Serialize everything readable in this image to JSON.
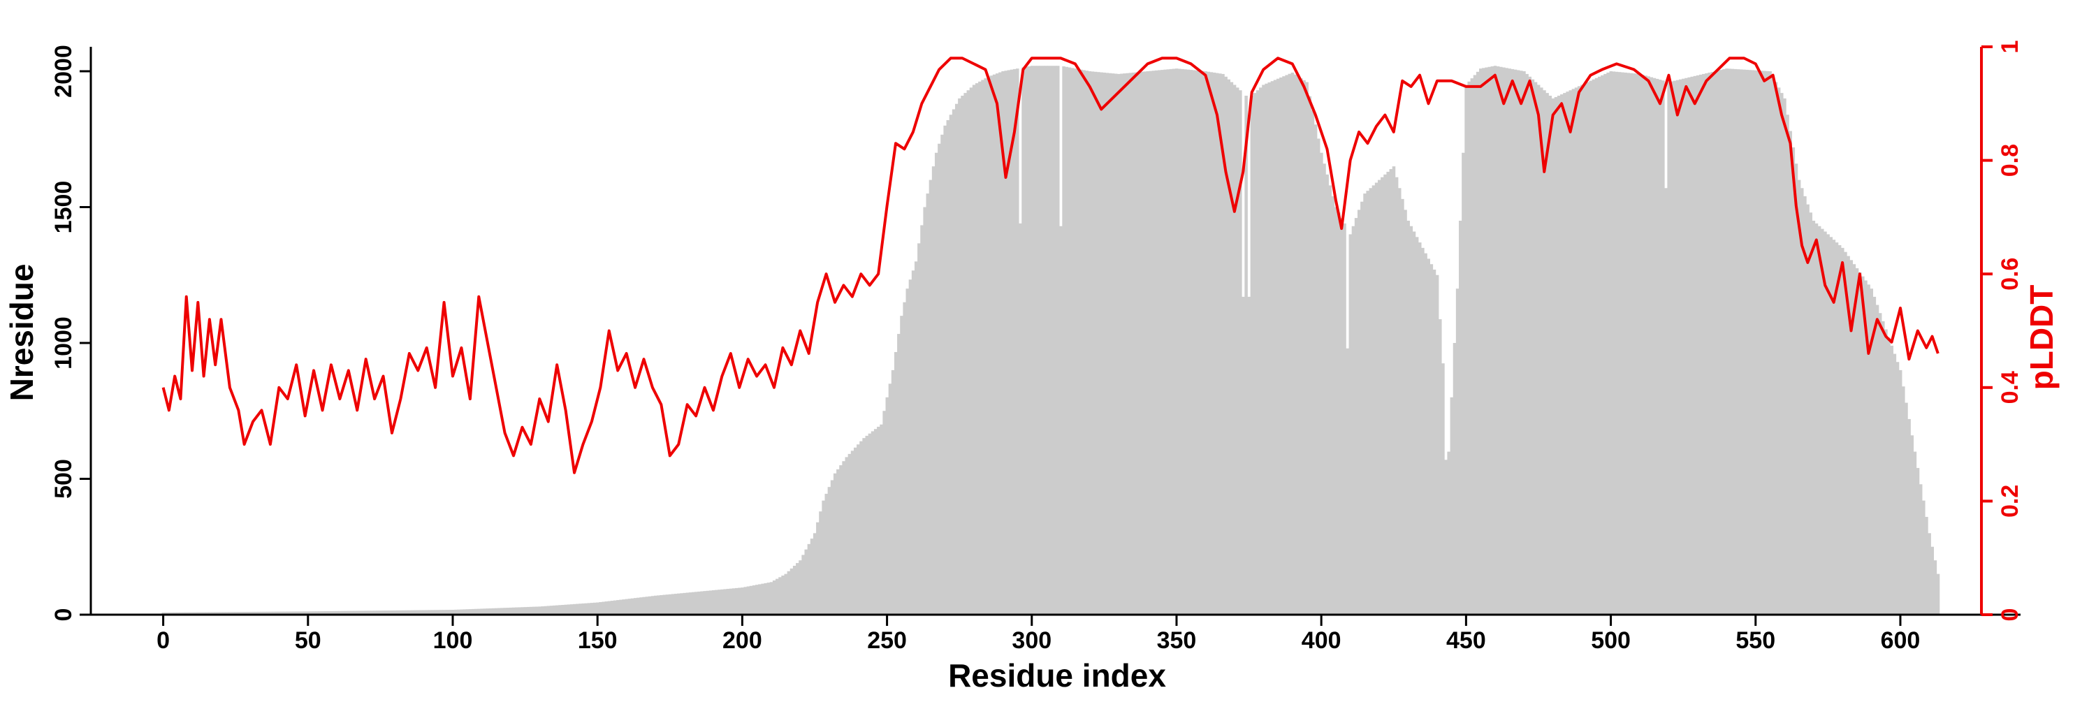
{
  "chart_data": {
    "type": "bar+line",
    "xlabel": "Residue index",
    "ylabel_left": "Nresidue",
    "ylabel_right": "pLDDT",
    "x_ticks": [
      0,
      50,
      100,
      150,
      200,
      250,
      300,
      350,
      400,
      450,
      500,
      550,
      600
    ],
    "x_tick_labels": [
      "0",
      "50",
      "100",
      "150",
      "200",
      "250",
      "300",
      "350",
      "400",
      "450",
      "500",
      "550",
      "600"
    ],
    "y_left_ticks": [
      0,
      500,
      1000,
      1500,
      2000
    ],
    "y_left_tick_labels": [
      "0",
      "500",
      "1000",
      "1500",
      "2000"
    ],
    "y_right_ticks": [
      0,
      0.2,
      0.4,
      0.6,
      0.8,
      1
    ],
    "y_right_tick_labels": [
      "0",
      "0.2",
      "0.4",
      "0.6",
      "0.8",
      "1"
    ],
    "xlim": [
      -25,
      628
    ],
    "ylim_left": [
      0,
      2090
    ],
    "ylim_right": [
      0,
      1
    ],
    "colors": {
      "bars": "#cccccc",
      "line": "#ee0000",
      "axis": "#000000",
      "right_axis": "#ee0000"
    },
    "nresidue_keypoints": [
      [
        0,
        8
      ],
      [
        50,
        12
      ],
      [
        100,
        18
      ],
      [
        130,
        30
      ],
      [
        150,
        45
      ],
      [
        170,
        70
      ],
      [
        190,
        90
      ],
      [
        200,
        100
      ],
      [
        210,
        120
      ],
      [
        215,
        150
      ],
      [
        220,
        200
      ],
      [
        225,
        300
      ],
      [
        228,
        420
      ],
      [
        232,
        520
      ],
      [
        236,
        580
      ],
      [
        242,
        650
      ],
      [
        248,
        700
      ],
      [
        252,
        900
      ],
      [
        255,
        1100
      ],
      [
        257,
        1200
      ],
      [
        260,
        1300
      ],
      [
        263,
        1500
      ],
      [
        267,
        1700
      ],
      [
        270,
        1800
      ],
      [
        275,
        1900
      ],
      [
        280,
        1950
      ],
      [
        285,
        1980
      ],
      [
        290,
        2000
      ],
      [
        300,
        2020
      ],
      [
        310,
        2020
      ],
      [
        320,
        2000
      ],
      [
        330,
        1990
      ],
      [
        350,
        2010
      ],
      [
        360,
        2000
      ],
      [
        366,
        1990
      ],
      [
        370,
        1950
      ],
      [
        375,
        1900
      ],
      [
        380,
        1950
      ],
      [
        390,
        1995
      ],
      [
        395,
        1960
      ],
      [
        400,
        1700
      ],
      [
        405,
        1500
      ],
      [
        410,
        1400
      ],
      [
        415,
        1550
      ],
      [
        420,
        1600
      ],
      [
        425,
        1650
      ],
      [
        430,
        1450
      ],
      [
        435,
        1350
      ],
      [
        440,
        1250
      ],
      [
        444,
        600
      ],
      [
        447,
        1200
      ],
      [
        450,
        1950
      ],
      [
        455,
        2010
      ],
      [
        460,
        2020
      ],
      [
        470,
        2000
      ],
      [
        480,
        1900
      ],
      [
        490,
        1950
      ],
      [
        500,
        2000
      ],
      [
        510,
        1990
      ],
      [
        520,
        1960
      ],
      [
        540,
        2010
      ],
      [
        555,
        2000
      ],
      [
        560,
        1900
      ],
      [
        565,
        1600
      ],
      [
        570,
        1450
      ],
      [
        575,
        1400
      ],
      [
        580,
        1350
      ],
      [
        590,
        1200
      ],
      [
        595,
        1050
      ],
      [
        600,
        900
      ],
      [
        605,
        600
      ],
      [
        610,
        300
      ],
      [
        613,
        150
      ]
    ],
    "nresidue_dips": [
      [
        296,
        1440
      ],
      [
        310,
        1430
      ],
      [
        373,
        1170
      ],
      [
        375,
        1170
      ],
      [
        409,
        980
      ],
      [
        443,
        570
      ],
      [
        519,
        1570
      ]
    ],
    "plddt_keypoints": [
      [
        0,
        0.4
      ],
      [
        2,
        0.36
      ],
      [
        4,
        0.42
      ],
      [
        6,
        0.38
      ],
      [
        8,
        0.56
      ],
      [
        10,
        0.43
      ],
      [
        12,
        0.55
      ],
      [
        14,
        0.42
      ],
      [
        16,
        0.52
      ],
      [
        18,
        0.44
      ],
      [
        20,
        0.52
      ],
      [
        23,
        0.4
      ],
      [
        26,
        0.36
      ],
      [
        28,
        0.3
      ],
      [
        31,
        0.34
      ],
      [
        34,
        0.36
      ],
      [
        37,
        0.3
      ],
      [
        40,
        0.4
      ],
      [
        43,
        0.38
      ],
      [
        46,
        0.44
      ],
      [
        49,
        0.35
      ],
      [
        52,
        0.43
      ],
      [
        55,
        0.36
      ],
      [
        58,
        0.44
      ],
      [
        61,
        0.38
      ],
      [
        64,
        0.43
      ],
      [
        67,
        0.36
      ],
      [
        70,
        0.45
      ],
      [
        73,
        0.38
      ],
      [
        76,
        0.42
      ],
      [
        79,
        0.32
      ],
      [
        82,
        0.38
      ],
      [
        85,
        0.46
      ],
      [
        88,
        0.43
      ],
      [
        91,
        0.47
      ],
      [
        94,
        0.4
      ],
      [
        97,
        0.55
      ],
      [
        100,
        0.42
      ],
      [
        103,
        0.47
      ],
      [
        106,
        0.38
      ],
      [
        109,
        0.56
      ],
      [
        112,
        0.48
      ],
      [
        115,
        0.4
      ],
      [
        118,
        0.32
      ],
      [
        121,
        0.28
      ],
      [
        124,
        0.33
      ],
      [
        127,
        0.3
      ],
      [
        130,
        0.38
      ],
      [
        133,
        0.34
      ],
      [
        136,
        0.44
      ],
      [
        139,
        0.36
      ],
      [
        142,
        0.25
      ],
      [
        145,
        0.3
      ],
      [
        148,
        0.34
      ],
      [
        151,
        0.4
      ],
      [
        154,
        0.5
      ],
      [
        157,
        0.43
      ],
      [
        160,
        0.46
      ],
      [
        163,
        0.4
      ],
      [
        166,
        0.45
      ],
      [
        169,
        0.4
      ],
      [
        172,
        0.37
      ],
      [
        175,
        0.28
      ],
      [
        178,
        0.3
      ],
      [
        181,
        0.37
      ],
      [
        184,
        0.35
      ],
      [
        187,
        0.4
      ],
      [
        190,
        0.36
      ],
      [
        193,
        0.42
      ],
      [
        196,
        0.46
      ],
      [
        199,
        0.4
      ],
      [
        202,
        0.45
      ],
      [
        205,
        0.42
      ],
      [
        208,
        0.44
      ],
      [
        211,
        0.4
      ],
      [
        214,
        0.47
      ],
      [
        217,
        0.44
      ],
      [
        220,
        0.5
      ],
      [
        223,
        0.46
      ],
      [
        226,
        0.55
      ],
      [
        229,
        0.6
      ],
      [
        232,
        0.55
      ],
      [
        235,
        0.58
      ],
      [
        238,
        0.56
      ],
      [
        241,
        0.6
      ],
      [
        244,
        0.58
      ],
      [
        247,
        0.6
      ],
      [
        250,
        0.72
      ],
      [
        253,
        0.83
      ],
      [
        256,
        0.82
      ],
      [
        259,
        0.85
      ],
      [
        262,
        0.9
      ],
      [
        265,
        0.93
      ],
      [
        268,
        0.96
      ],
      [
        272,
        0.98
      ],
      [
        276,
        0.98
      ],
      [
        280,
        0.97
      ],
      [
        284,
        0.96
      ],
      [
        288,
        0.9
      ],
      [
        291,
        0.77
      ],
      [
        294,
        0.85
      ],
      [
        297,
        0.96
      ],
      [
        300,
        0.98
      ],
      [
        305,
        0.98
      ],
      [
        310,
        0.98
      ],
      [
        315,
        0.97
      ],
      [
        320,
        0.93
      ],
      [
        324,
        0.89
      ],
      [
        328,
        0.91
      ],
      [
        332,
        0.93
      ],
      [
        336,
        0.95
      ],
      [
        340,
        0.97
      ],
      [
        345,
        0.98
      ],
      [
        350,
        0.98
      ],
      [
        355,
        0.97
      ],
      [
        360,
        0.95
      ],
      [
        364,
        0.88
      ],
      [
        367,
        0.78
      ],
      [
        370,
        0.71
      ],
      [
        373,
        0.78
      ],
      [
        376,
        0.92
      ],
      [
        380,
        0.96
      ],
      [
        385,
        0.98
      ],
      [
        390,
        0.97
      ],
      [
        394,
        0.93
      ],
      [
        398,
        0.88
      ],
      [
        402,
        0.82
      ],
      [
        405,
        0.73
      ],
      [
        407,
        0.68
      ],
      [
        410,
        0.8
      ],
      [
        413,
        0.85
      ],
      [
        416,
        0.83
      ],
      [
        419,
        0.86
      ],
      [
        422,
        0.88
      ],
      [
        425,
        0.85
      ],
      [
        428,
        0.94
      ],
      [
        431,
        0.93
      ],
      [
        434,
        0.95
      ],
      [
        437,
        0.9
      ],
      [
        440,
        0.94
      ],
      [
        445,
        0.94
      ],
      [
        450,
        0.93
      ],
      [
        455,
        0.93
      ],
      [
        460,
        0.95
      ],
      [
        463,
        0.9
      ],
      [
        466,
        0.94
      ],
      [
        469,
        0.9
      ],
      [
        472,
        0.94
      ],
      [
        475,
        0.88
      ],
      [
        477,
        0.78
      ],
      [
        480,
        0.88
      ],
      [
        483,
        0.9
      ],
      [
        486,
        0.85
      ],
      [
        489,
        0.92
      ],
      [
        493,
        0.95
      ],
      [
        497,
        0.96
      ],
      [
        502,
        0.97
      ],
      [
        508,
        0.96
      ],
      [
        513,
        0.94
      ],
      [
        517,
        0.9
      ],
      [
        520,
        0.95
      ],
      [
        523,
        0.88
      ],
      [
        526,
        0.93
      ],
      [
        529,
        0.9
      ],
      [
        533,
        0.94
      ],
      [
        537,
        0.96
      ],
      [
        541,
        0.98
      ],
      [
        546,
        0.98
      ],
      [
        550,
        0.97
      ],
      [
        553,
        0.94
      ],
      [
        556,
        0.95
      ],
      [
        559,
        0.88
      ],
      [
        562,
        0.83
      ],
      [
        564,
        0.72
      ],
      [
        566,
        0.65
      ],
      [
        568,
        0.62
      ],
      [
        571,
        0.66
      ],
      [
        574,
        0.58
      ],
      [
        577,
        0.55
      ],
      [
        580,
        0.62
      ],
      [
        583,
        0.5
      ],
      [
        586,
        0.6
      ],
      [
        589,
        0.46
      ],
      [
        592,
        0.52
      ],
      [
        595,
        0.49
      ],
      [
        597,
        0.48
      ],
      [
        600,
        0.54
      ],
      [
        603,
        0.45
      ],
      [
        606,
        0.5
      ],
      [
        609,
        0.47
      ],
      [
        611,
        0.49
      ],
      [
        613,
        0.46
      ]
    ]
  }
}
